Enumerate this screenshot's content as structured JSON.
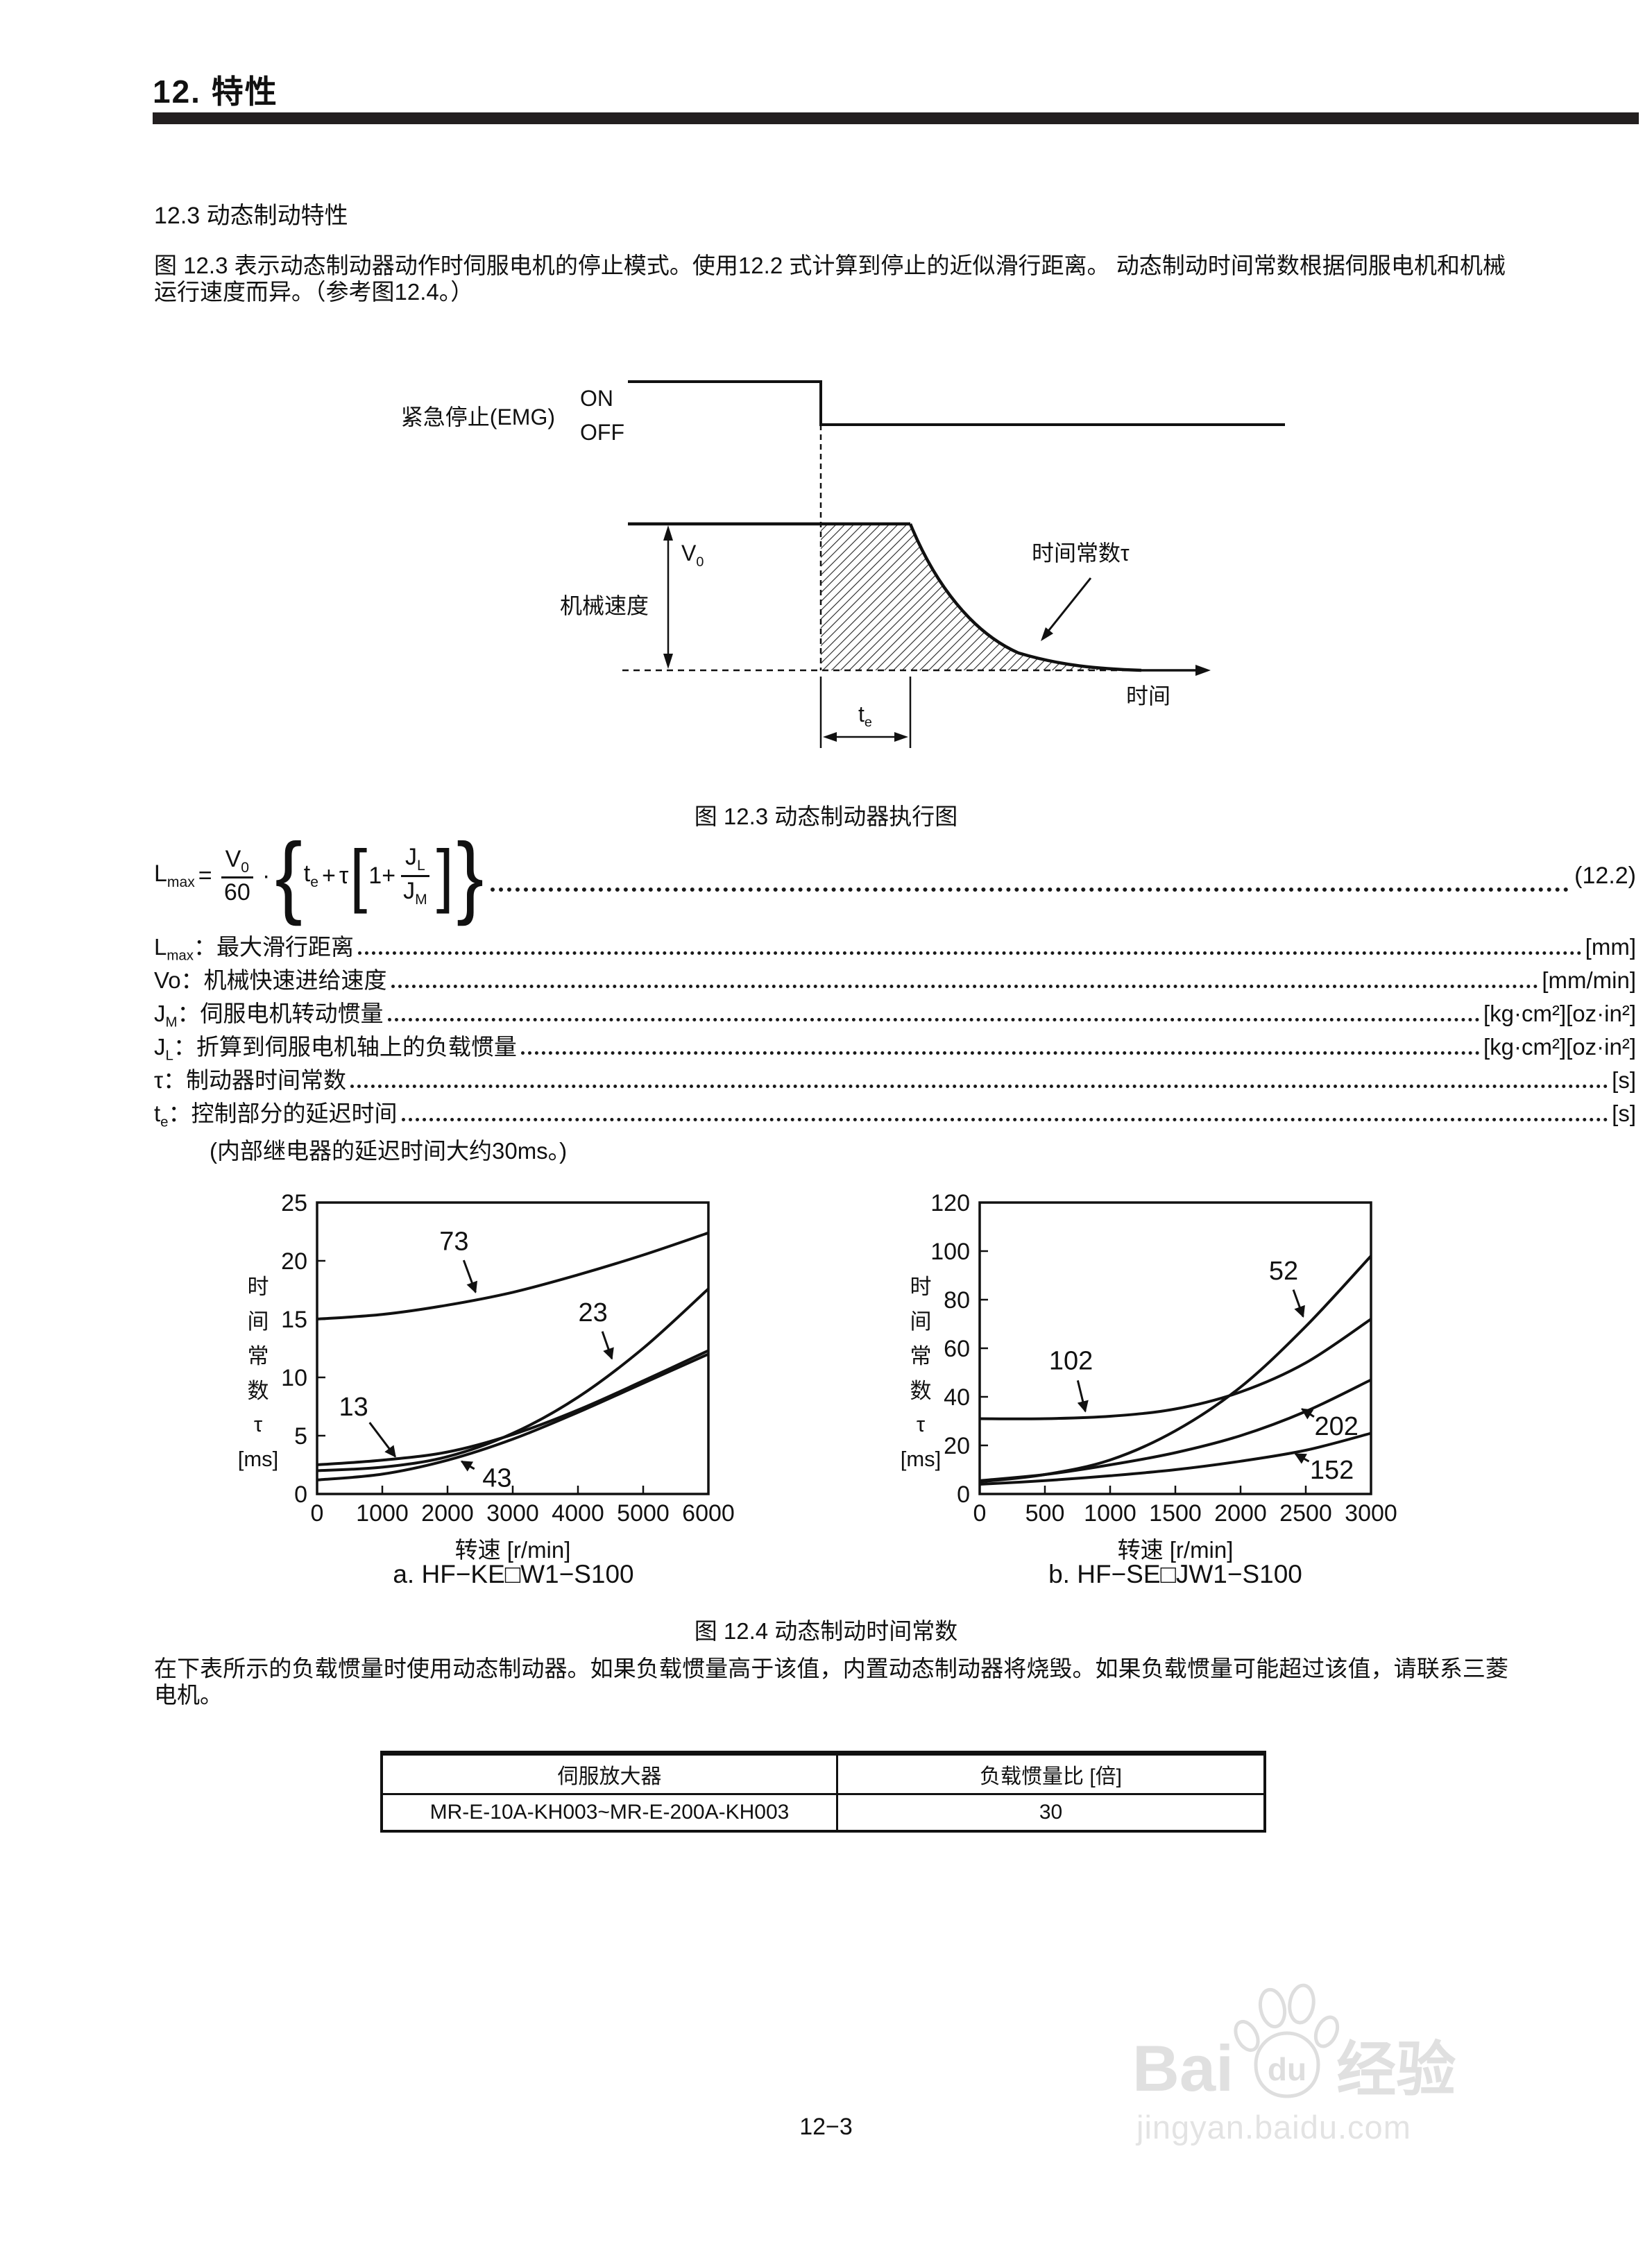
{
  "header": {
    "chapter": "12. 特性"
  },
  "section": {
    "title": "12.3 动态制动特性"
  },
  "intro": "图 12.3 表示动态制动器动作时伺服电机的停止模式。使用12.2 式计算到停止的近似滑行距离。 动态制动时间常数根据伺服电机和机械运行速度而异。（参考图12.4。）",
  "diagram": {
    "emg_label": "紧急停止(EMG)",
    "on": "ON",
    "off": "OFF",
    "v0_base": "V",
    "v0_sub": "0",
    "machine_speed": "机械速度",
    "time_constant": "时间常数τ",
    "time": "时间",
    "te_base": "t",
    "te_sub": "e",
    "caption": "图 12.3 动态制动器执行图"
  },
  "formula": {
    "lhs_base": "L",
    "lhs_sub": "max",
    "equals": "=",
    "num_base": "V",
    "num_sub": "0",
    "den": "60",
    "cdot": "·",
    "brace_l": "{",
    "t_base": "t",
    "t_sub": "e",
    "plus": "+",
    "tau": "τ",
    "bracket_l": "[",
    "one_plus": "1+",
    "jl_base": "J",
    "jl_sub": "L",
    "jm_base": "J",
    "jm_sub": "M",
    "bracket_r": "]",
    "brace_r": "}",
    "number": "(12.2)"
  },
  "definitions": [
    {
      "base": "L",
      "sub": "max",
      "label": "：最大滑行距离",
      "unit": "[mm]"
    },
    {
      "base": "Vo",
      "sub": "",
      "label": "：机械快速进给速度",
      "unit": "[mm/min]"
    },
    {
      "base": "J",
      "sub": "M",
      "label": "：伺服电机转动惯量",
      "unit": "[kg·cm²][oz·in²]"
    },
    {
      "base": "J",
      "sub": "L",
      "label": "：折算到伺服电机轴上的负载惯量",
      "unit": "[kg·cm²][oz·in²]"
    },
    {
      "base": "τ",
      "sub": "",
      "label": "：制动器时间常数",
      "unit": "[s]"
    },
    {
      "base": "t",
      "sub": "e",
      "label": "：控制部分的延迟时间",
      "unit": "[s]"
    }
  ],
  "definitions_note": "(内部继电器的延迟时间大约30ms。)",
  "chart_data": [
    {
      "type": "line",
      "title": "a. HF−KE□W1−S100",
      "xlabel": "转速 [r/min]",
      "ylabel_stack": [
        "时",
        "间",
        "常",
        "数",
        "τ",
        "[ms]"
      ],
      "xlim": [
        0,
        6000
      ],
      "ylim": [
        0,
        25
      ],
      "xticks": [
        0,
        1000,
        2000,
        3000,
        4000,
        5000,
        6000
      ],
      "yticks": [
        0,
        5,
        10,
        15,
        20,
        25
      ],
      "grid": false,
      "series": [
        {
          "name": "73",
          "points": [
            [
              0,
              15
            ],
            [
              1000,
              15.4
            ],
            [
              2000,
              16.2
            ],
            [
              3000,
              17.3
            ],
            [
              4000,
              18.8
            ],
            [
              5000,
              20.5
            ],
            [
              6000,
              22.4
            ]
          ]
        },
        {
          "name": "23",
          "points": [
            [
              0,
              2.0
            ],
            [
              1000,
              2.3
            ],
            [
              2000,
              3.2
            ],
            [
              3000,
              5.2
            ],
            [
              4000,
              8.3
            ],
            [
              5000,
              12.5
            ],
            [
              6000,
              17.6
            ]
          ]
        },
        {
          "name": "13",
          "points": [
            [
              0,
              2.5
            ],
            [
              1000,
              2.9
            ],
            [
              2000,
              3.6
            ],
            [
              3000,
              5.1
            ],
            [
              4000,
              7.2
            ],
            [
              5000,
              9.7
            ],
            [
              6000,
              12.3
            ]
          ]
        },
        {
          "name": "43",
          "points": [
            [
              0,
              1.2
            ],
            [
              1000,
              1.7
            ],
            [
              2000,
              2.9
            ],
            [
              3000,
              4.7
            ],
            [
              4000,
              7.0
            ],
            [
              5000,
              9.5
            ],
            [
              6000,
              12.0
            ]
          ]
        }
      ],
      "annotations": [
        {
          "label": "73",
          "at": [
            2100,
            21.7
          ],
          "tip": [
            2430,
            17.3
          ]
        },
        {
          "label": "23",
          "at": [
            4230,
            15.6
          ],
          "tip": [
            4520,
            11.6
          ]
        },
        {
          "label": "13",
          "at": [
            560,
            7.5
          ],
          "tip": [
            1200,
            3.2
          ]
        },
        {
          "label": "43",
          "at": [
            2760,
            1.4
          ],
          "tip": [
            2215,
            2.8
          ]
        }
      ]
    },
    {
      "type": "line",
      "title": "b. HF−SE□JW1−S100",
      "xlabel": "转速 [r/min]",
      "ylabel_stack": [
        "时",
        "间",
        "常",
        "数",
        "τ",
        "[ms]"
      ],
      "xlim": [
        0,
        3000
      ],
      "ylim": [
        0,
        120
      ],
      "xticks": [
        0,
        500,
        1000,
        1500,
        2000,
        2500,
        3000
      ],
      "yticks": [
        0,
        20,
        40,
        60,
        80,
        100,
        120
      ],
      "grid": false,
      "series": [
        {
          "name": "52",
          "points": [
            [
              0,
              5
            ],
            [
              500,
              8
            ],
            [
              1000,
              14
            ],
            [
              1500,
              26
            ],
            [
              2000,
              44
            ],
            [
              2500,
              69
            ],
            [
              3000,
              98
            ]
          ]
        },
        {
          "name": "102",
          "points": [
            [
              0,
              31
            ],
            [
              500,
              31
            ],
            [
              1000,
              32
            ],
            [
              1500,
              35
            ],
            [
              2000,
              42
            ],
            [
              2500,
              54
            ],
            [
              3000,
              72
            ]
          ]
        },
        {
          "name": "202",
          "points": [
            [
              0,
              5.5
            ],
            [
              500,
              8
            ],
            [
              1000,
              12
            ],
            [
              1500,
              17
            ],
            [
              2000,
              24
            ],
            [
              2500,
              34
            ],
            [
              3000,
              47
            ]
          ]
        },
        {
          "name": "152",
          "points": [
            [
              0,
              4
            ],
            [
              500,
              5.5
            ],
            [
              1000,
              7.5
            ],
            [
              1500,
              10
            ],
            [
              2000,
              13.5
            ],
            [
              2500,
              18
            ],
            [
              3000,
              25
            ]
          ]
        }
      ],
      "annotations": [
        {
          "label": "52",
          "at": [
            2330,
            92
          ],
          "tip": [
            2480,
            73
          ]
        },
        {
          "label": "102",
          "at": [
            700,
            55
          ],
          "tip": [
            810,
            34
          ]
        },
        {
          "label": "202",
          "at": [
            2735,
            28
          ],
          "tip": [
            2470,
            35
          ]
        },
        {
          "label": "152",
          "at": [
            2700,
            10
          ],
          "tip": [
            2420,
            16.5
          ]
        }
      ]
    }
  ],
  "fig4_caption": "图 12.4 动态制动时间常数",
  "paragraph2": "在下表所示的负载惯量时使用动态制动器。如果负载惯量高于该值，内置动态制动器将烧毁。如果负载惯量可能超过该值，请联系三菱电机。",
  "table": {
    "headers": [
      "伺服放大器",
      "负载惯量比 [倍]"
    ],
    "rows": [
      {
        "amplifier": "MR-E-10A-KH003~MR-E-200A-KH003",
        "ratio": "30"
      }
    ]
  },
  "watermark": {
    "brand_latin": "Bai",
    "brand_du": "du",
    "brand_cn": "经验",
    "site": "jingyan.baidu.com"
  },
  "page_number": "12−3"
}
